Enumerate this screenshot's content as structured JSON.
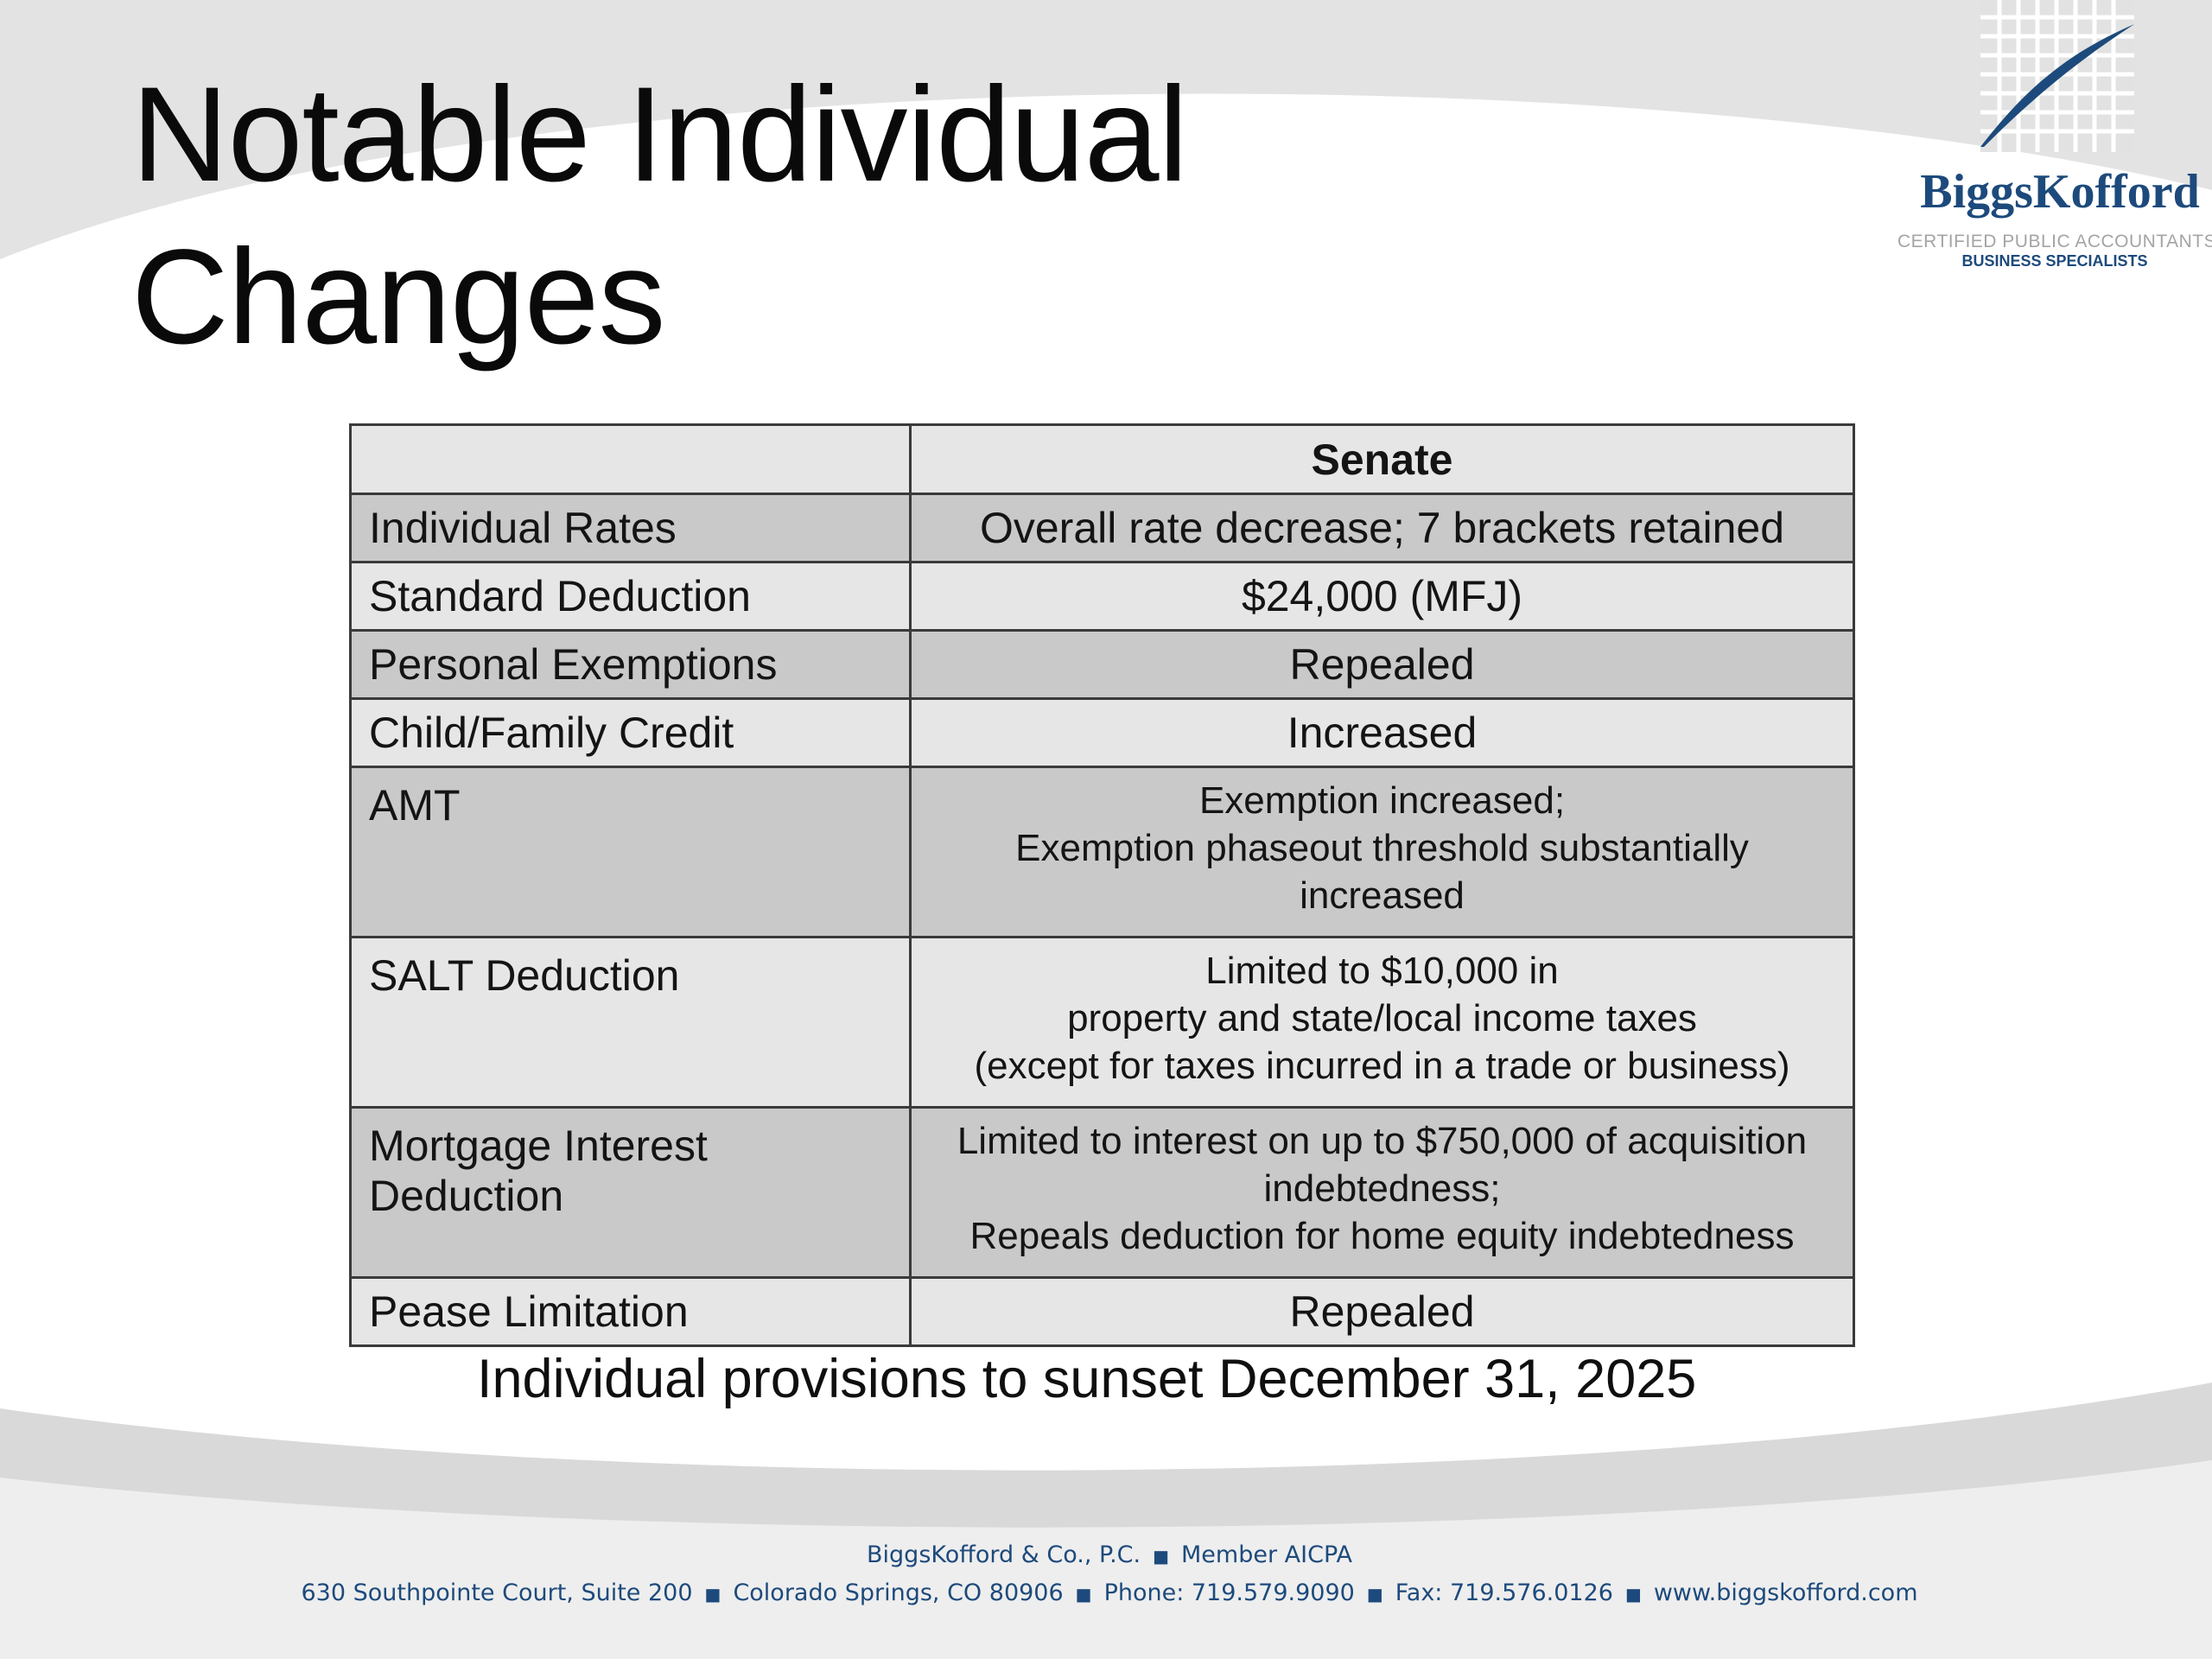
{
  "slide": {
    "title_line1": "Notable Individual",
    "title_line2": "Changes"
  },
  "logo": {
    "name": "BiggsKofford",
    "tagline": "CERTIFIED PUBLIC ACCOUNTANTS",
    "subtitle": "BUSINESS SPECIALISTS"
  },
  "table": {
    "header": [
      "",
      "Senate"
    ],
    "rows": [
      {
        "label": "Individual Rates",
        "value": [
          "Overall rate decrease; 7 brackets retained"
        ]
      },
      {
        "label": "Standard Deduction",
        "value": [
          "$24,000 (MFJ)"
        ]
      },
      {
        "label": "Personal Exemptions",
        "value": [
          "Repealed"
        ]
      },
      {
        "label": "Child/Family Credit",
        "value": [
          "Increased"
        ]
      },
      {
        "label": "AMT",
        "value": [
          "Exemption increased;",
          "Exemption phaseout threshold substantially",
          "increased"
        ]
      },
      {
        "label": "SALT Deduction",
        "value": [
          "Limited to $10,000 in",
          "property and state/local income taxes",
          "(except for taxes incurred in a trade or business)"
        ]
      },
      {
        "label": "Mortgage Interest Deduction",
        "value": [
          "Limited to interest on up to $750,000 of acquisition",
          "indebtedness;",
          "Repeals deduction for home equity indebtedness"
        ]
      },
      {
        "label": "Pease Limitation",
        "value": [
          "Repealed"
        ]
      }
    ]
  },
  "note": "Individual provisions to sunset December 31, 2025",
  "footer": {
    "firm": "BiggsKofford & Co., P.C.",
    "membership": "Member AICPA",
    "address": "630 Southpointe Court, Suite 200",
    "city": "Colorado Springs, CO 80906",
    "phone": "Phone: 719.579.9090",
    "fax": "Fax: 719.576.0126",
    "website": "www.biggskofford.com",
    "separator": "■"
  },
  "colors": {
    "brand_blue": "#1d4a7c",
    "band_gray": "#e2e2e2",
    "row_dark": "#c9c9c9",
    "row_light": "#e6e6e6"
  }
}
